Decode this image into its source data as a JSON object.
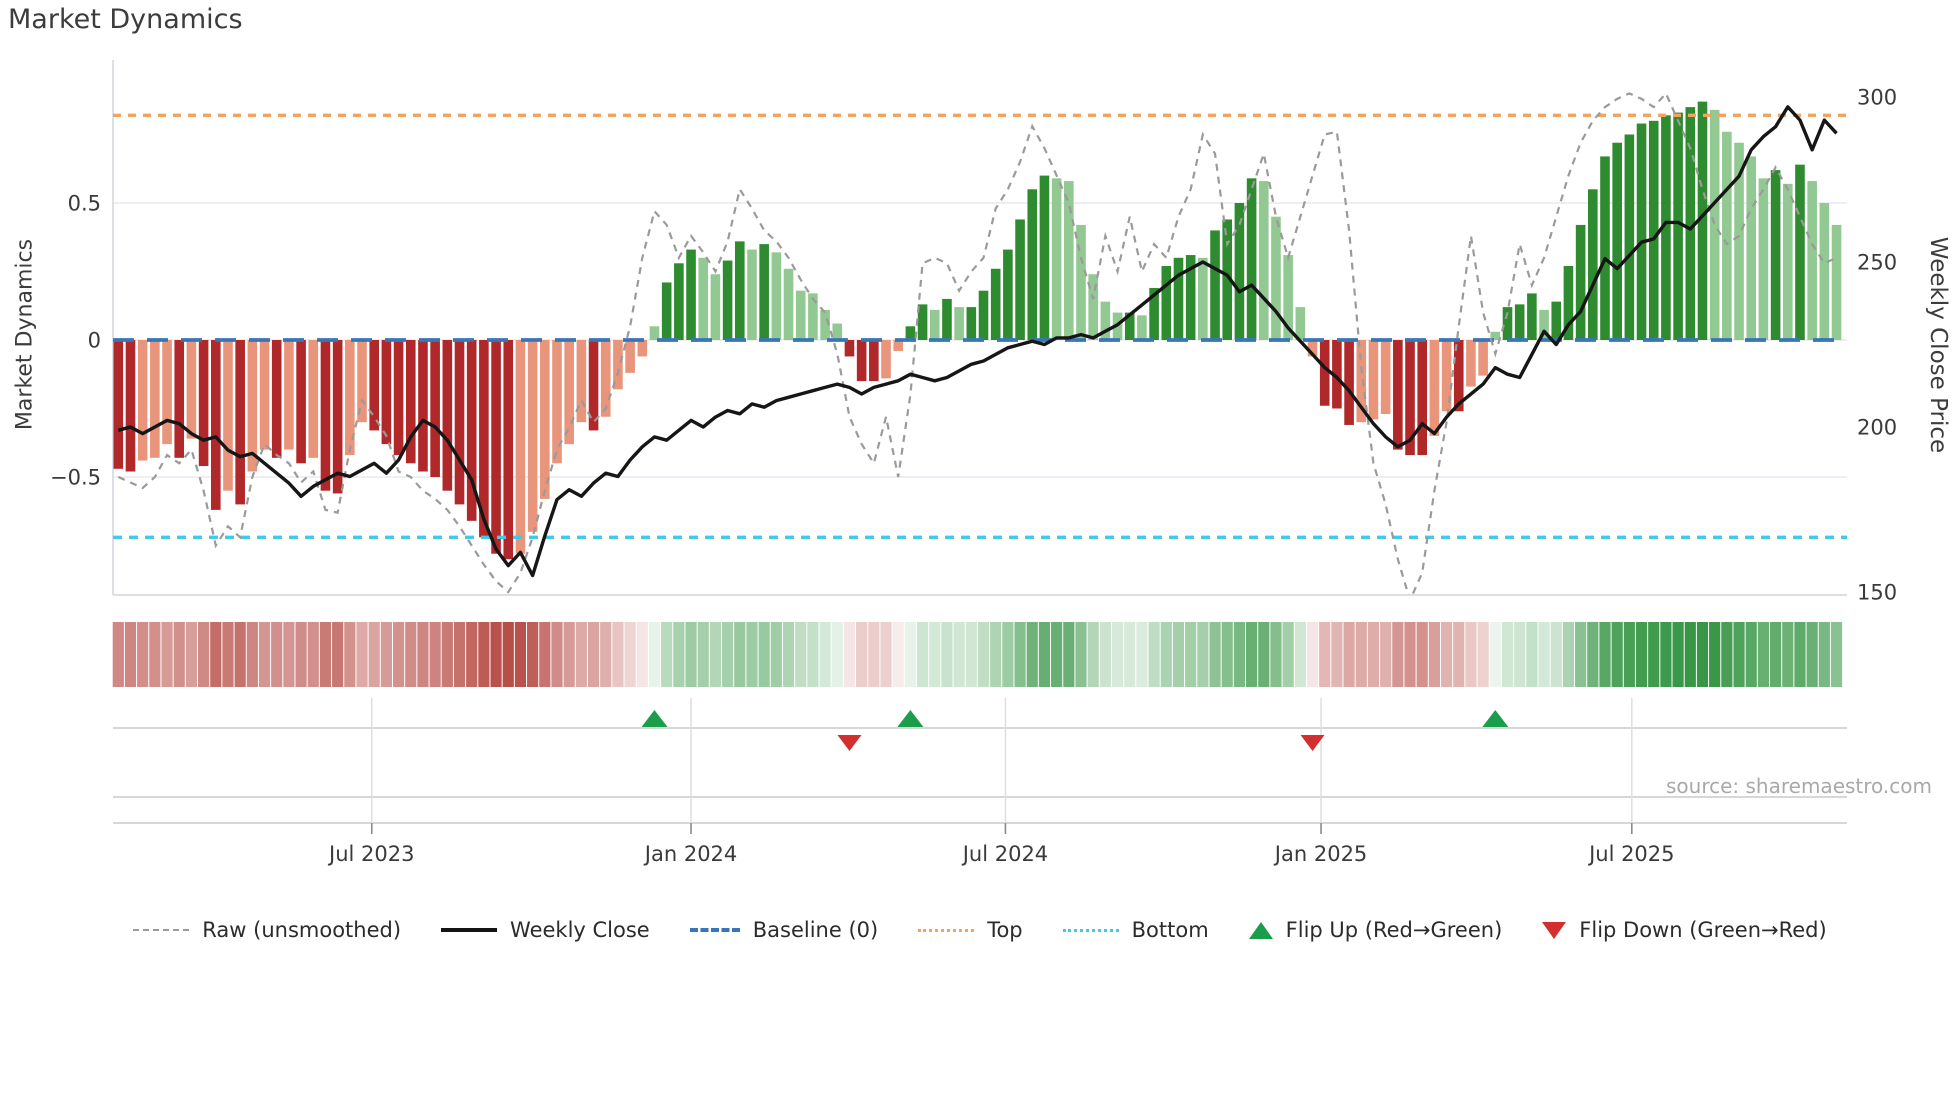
{
  "title": "Market Dynamics",
  "ylabel_left": "Market Dynamics",
  "ylabel_right": "Weekly Close Price",
  "source": "source: sharemaestro.com",
  "colors": {
    "bar_pos_strong": "#2e8b30",
    "bar_pos_weak": "#92c892",
    "bar_neg_strong": "#b0282a",
    "bar_neg_weak": "#e8957c",
    "baseline": "#3776b8",
    "top_level": "#f2a360",
    "bottom_level": "#40c9e8",
    "raw_line": "#9a9a9a",
    "price_line": "#161616",
    "flip_up": "#1a9e4b",
    "flip_down": "#d32f2f",
    "heat_pos": "#389646",
    "heat_neg": "#b44640",
    "grid": "#e9e9f0",
    "panel_line": "#cacaca",
    "tick_text": "#3a3a3a"
  },
  "legend": [
    {
      "label": "Raw (unsmoothed)",
      "swatch": "raw"
    },
    {
      "label": "Weekly Close",
      "swatch": "close"
    },
    {
      "label": "Baseline (0)",
      "swatch": "baseline"
    },
    {
      "label": "Top",
      "swatch": "top"
    },
    {
      "label": "Bottom",
      "swatch": "bottom"
    },
    {
      "label": "Flip Up (Red→Green)",
      "swatch": "tri-up"
    },
    {
      "label": "Flip Down (Green→Red)",
      "swatch": "tri-down"
    }
  ],
  "chart_data": {
    "type": "bar",
    "subtype": "weekly oscillator bars + price line overlay + momentum heatmap strip + flip markers",
    "weeks": 142,
    "x_ticks": [
      {
        "label": "Jul 2023",
        "week": 20.8
      },
      {
        "label": "Jan 2024",
        "week": 47.0
      },
      {
        "label": "Jul 2024",
        "week": 72.8
      },
      {
        "label": "Jan 2025",
        "week": 98.7
      },
      {
        "label": "Jul 2025",
        "week": 124.2
      }
    ],
    "left_axis": {
      "ticks": [
        {
          "label": "0.5",
          "value": 0.5
        },
        {
          "label": "0",
          "value": 0
        },
        {
          "label": "−0.5",
          "value": -0.5
        }
      ],
      "ylim": [
        -0.93,
        1.02
      ]
    },
    "right_axis": {
      "ticks": [
        {
          "label": "300",
          "value": 300
        },
        {
          "label": "250",
          "value": 250
        },
        {
          "label": "200",
          "value": 200
        },
        {
          "label": "150",
          "value": 150
        }
      ],
      "ylim": [
        149,
        311
      ]
    },
    "baseline_value": 0,
    "top_level_value": 0.82,
    "bottom_level_value": -0.72,
    "series": [
      {
        "name": "Market Dynamics (smoothed bars)",
        "values": [
          -0.47,
          -0.48,
          -0.44,
          -0.43,
          -0.38,
          -0.43,
          -0.36,
          -0.46,
          -0.62,
          -0.55,
          -0.6,
          -0.48,
          -0.4,
          -0.43,
          -0.4,
          -0.45,
          -0.43,
          -0.55,
          -0.56,
          -0.42,
          -0.3,
          -0.33,
          -0.38,
          -0.42,
          -0.45,
          -0.48,
          -0.5,
          -0.55,
          -0.6,
          -0.66,
          -0.72,
          -0.78,
          -0.8,
          -0.78,
          -0.7,
          -0.58,
          -0.45,
          -0.38,
          -0.3,
          -0.33,
          -0.28,
          -0.18,
          -0.12,
          -0.06,
          0.05,
          0.21,
          0.28,
          0.33,
          0.3,
          0.24,
          0.29,
          0.36,
          0.33,
          0.35,
          0.32,
          0.26,
          0.18,
          0.17,
          0.11,
          0.06,
          -0.06,
          -0.15,
          -0.15,
          -0.14,
          -0.04,
          0.05,
          0.13,
          0.11,
          0.15,
          0.12,
          0.12,
          0.18,
          0.26,
          0.33,
          0.44,
          0.55,
          0.6,
          0.59,
          0.58,
          0.42,
          0.24,
          0.14,
          0.1,
          0.1,
          0.09,
          0.19,
          0.27,
          0.3,
          0.31,
          0.3,
          0.4,
          0.44,
          0.5,
          0.59,
          0.58,
          0.45,
          0.31,
          0.12,
          -0.06,
          -0.24,
          -0.25,
          -0.31,
          -0.3,
          -0.29,
          -0.27,
          -0.4,
          -0.42,
          -0.42,
          -0.35,
          -0.26,
          -0.26,
          -0.17,
          -0.13,
          0.03,
          0.12,
          0.13,
          0.17,
          0.11,
          0.14,
          0.27,
          0.42,
          0.55,
          0.67,
          0.72,
          0.75,
          0.79,
          0.8,
          0.82,
          0.83,
          0.85,
          0.87,
          0.84,
          0.76,
          0.72,
          0.67,
          0.59,
          0.62,
          0.57,
          0.64,
          0.58,
          0.5,
          0.42
        ]
      },
      {
        "name": "Raw (unsmoothed)",
        "values": [
          -0.5,
          -0.52,
          -0.54,
          -0.5,
          -0.42,
          -0.45,
          -0.4,
          -0.55,
          -0.75,
          -0.68,
          -0.72,
          -0.5,
          -0.38,
          -0.42,
          -0.45,
          -0.52,
          -0.48,
          -0.62,
          -0.63,
          -0.4,
          -0.22,
          -0.28,
          -0.35,
          -0.48,
          -0.5,
          -0.55,
          -0.58,
          -0.62,
          -0.68,
          -0.75,
          -0.82,
          -0.88,
          -0.92,
          -0.85,
          -0.72,
          -0.55,
          -0.4,
          -0.32,
          -0.22,
          -0.3,
          -0.25,
          -0.12,
          0.05,
          0.3,
          0.47,
          0.42,
          0.3,
          0.38,
          0.32,
          0.25,
          0.36,
          0.55,
          0.48,
          0.4,
          0.36,
          0.3,
          0.22,
          0.15,
          0.1,
          -0.05,
          -0.28,
          -0.38,
          -0.45,
          -0.28,
          -0.5,
          -0.2,
          0.28,
          0.3,
          0.28,
          0.18,
          0.25,
          0.3,
          0.48,
          0.55,
          0.65,
          0.78,
          0.7,
          0.6,
          0.5,
          0.3,
          0.15,
          0.38,
          0.25,
          0.45,
          0.25,
          0.35,
          0.3,
          0.45,
          0.55,
          0.75,
          0.68,
          0.35,
          0.42,
          0.55,
          0.68,
          0.45,
          0.3,
          0.45,
          0.6,
          0.75,
          0.76,
          0.4,
          -0.1,
          -0.45,
          -0.6,
          -0.8,
          -0.95,
          -0.85,
          -0.55,
          -0.3,
          0.05,
          0.38,
          0.1,
          -0.05,
          0.1,
          0.35,
          0.2,
          0.3,
          0.45,
          0.6,
          0.72,
          0.8,
          0.85,
          0.88,
          0.9,
          0.88,
          0.85,
          0.9,
          0.8,
          0.7,
          0.55,
          0.42,
          0.35,
          0.38,
          0.48,
          0.55,
          0.63,
          0.55,
          0.45,
          0.35,
          0.28,
          0.3
        ]
      },
      {
        "name": "Weekly Close",
        "values": [
          199,
          200,
          198,
          200,
          202,
          201,
          198,
          196,
          197,
          193,
          191,
          192,
          189,
          186,
          183,
          179,
          182,
          184,
          186,
          185,
          187,
          189,
          186,
          190,
          197,
          202,
          200,
          196,
          190,
          184,
          172,
          163,
          158,
          162,
          155,
          167,
          178,
          181,
          179,
          183,
          186,
          185,
          190,
          194,
          197,
          196,
          199,
          202,
          200,
          203,
          205,
          204,
          207,
          206,
          208,
          209,
          210,
          211,
          212,
          213,
          212,
          210,
          212,
          213,
          214,
          216,
          215,
          214,
          215,
          217,
          219,
          220,
          222,
          224,
          225,
          226,
          225,
          227,
          227,
          228,
          227,
          229,
          231,
          234,
          237,
          240,
          243,
          246,
          248,
          250,
          248,
          246,
          241,
          243,
          239,
          235,
          230,
          226,
          222,
          218,
          215,
          211,
          206,
          201,
          197,
          194,
          196,
          201,
          198,
          203,
          207,
          210,
          213,
          218,
          216,
          215,
          222,
          229,
          225,
          231,
          235,
          243,
          251,
          248,
          252,
          256,
          257,
          262,
          262,
          260,
          264,
          268,
          272,
          276,
          284,
          288,
          291,
          297,
          293,
          284,
          293,
          289
        ]
      }
    ],
    "flip_markers": [
      {
        "week": 44,
        "type": "up"
      },
      {
        "week": 60,
        "type": "down"
      },
      {
        "week": 65,
        "type": "up"
      },
      {
        "week": 98,
        "type": "down"
      },
      {
        "week": 113,
        "type": "up"
      }
    ],
    "legend_position": "bottom",
    "grid": "horizontal only"
  }
}
